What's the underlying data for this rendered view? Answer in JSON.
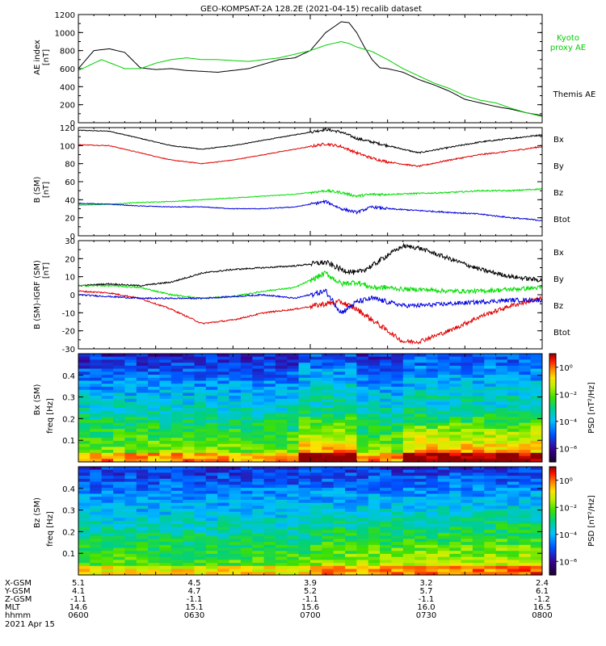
{
  "title": "GEO-KOMPSAT-2A 128.2E (2021-04-15) recalib dataset",
  "chart_data": [
    {
      "type": "line",
      "ylabel": [
        "AE index",
        "[nT]"
      ],
      "ylim": [
        0,
        1200
      ],
      "yticks": [
        0,
        200,
        400,
        600,
        800,
        1000,
        1200
      ],
      "series": [
        {
          "name": "Themis AE",
          "color": "#000000",
          "x": [
            0,
            2,
            4,
            6,
            8,
            10,
            12,
            14,
            16,
            18,
            20,
            22,
            24,
            26,
            28,
            30,
            32,
            34,
            35,
            36,
            37,
            38,
            39,
            40,
            42,
            44,
            46,
            48,
            50,
            52,
            54,
            56,
            58,
            60
          ],
          "y": [
            600,
            800,
            820,
            780,
            610,
            590,
            600,
            580,
            570,
            560,
            580,
            600,
            650,
            700,
            720,
            800,
            1000,
            1120,
            1110,
            1000,
            840,
            700,
            610,
            600,
            560,
            480,
            420,
            350,
            260,
            220,
            180,
            150,
            110,
            80
          ]
        },
        {
          "name": "Kyoto proxy AE",
          "color": "#00cc00",
          "x": [
            0,
            3,
            6,
            8,
            10,
            12,
            14,
            16,
            18,
            20,
            22,
            24,
            26,
            28,
            30,
            32,
            34,
            35,
            36,
            38,
            40,
            42,
            44,
            46,
            48,
            50,
            52,
            54,
            56,
            58,
            60
          ],
          "y": [
            580,
            700,
            600,
            600,
            660,
            700,
            720,
            700,
            700,
            690,
            680,
            700,
            720,
            760,
            800,
            860,
            900,
            880,
            840,
            790,
            700,
            600,
            520,
            440,
            380,
            300,
            250,
            220,
            160,
            110,
            70
          ]
        }
      ]
    },
    {
      "type": "line",
      "ylabel": [
        "B",
        "(SM)",
        "[nT]"
      ],
      "ylim": [
        0,
        120
      ],
      "yticks": [
        0,
        20,
        40,
        60,
        80,
        100,
        120
      ],
      "series": [
        {
          "name": "Btot",
          "color": "#000000",
          "x": [
            0,
            4,
            8,
            12,
            16,
            20,
            24,
            28,
            32,
            34,
            36,
            38,
            40,
            44,
            48,
            52,
            56,
            60
          ],
          "y": [
            117,
            116,
            108,
            100,
            96,
            100,
            106,
            112,
            118,
            115,
            108,
            104,
            100,
            92,
            98,
            104,
            108,
            112
          ]
        },
        {
          "name": "Bx",
          "color": "#e00000",
          "x": [
            0,
            4,
            8,
            12,
            16,
            20,
            24,
            28,
            32,
            34,
            36,
            38,
            40,
            44,
            48,
            52,
            56,
            60
          ],
          "y": [
            101,
            100,
            92,
            84,
            80,
            84,
            90,
            96,
            102,
            99,
            92,
            86,
            82,
            77,
            84,
            90,
            94,
            99
          ]
        },
        {
          "name": "By",
          "color": "#00dd00",
          "x": [
            0,
            4,
            8,
            12,
            16,
            20,
            24,
            28,
            32,
            34,
            36,
            38,
            40,
            44,
            48,
            52,
            56,
            60
          ],
          "y": [
            34,
            35,
            37,
            38,
            40,
            42,
            44,
            46,
            50,
            48,
            44,
            46,
            46,
            47,
            48,
            50,
            50,
            52
          ]
        },
        {
          "name": "Bz",
          "color": "#0000dd",
          "x": [
            0,
            4,
            8,
            12,
            16,
            20,
            24,
            28,
            32,
            34,
            36,
            38,
            40,
            44,
            48,
            52,
            56,
            60
          ],
          "y": [
            36,
            35,
            33,
            32,
            32,
            30,
            30,
            32,
            38,
            30,
            26,
            32,
            30,
            28,
            26,
            24,
            20,
            17
          ]
        }
      ]
    },
    {
      "type": "line",
      "ylabel": [
        "B (SM)-IGRF (SM)",
        "[nT]"
      ],
      "ylim": [
        -30,
        30
      ],
      "yticks": [
        -30,
        -20,
        -10,
        0,
        10,
        20,
        30
      ],
      "series": [
        {
          "name": "Btot",
          "color": "#000000",
          "x": [
            0,
            4,
            8,
            12,
            16,
            20,
            24,
            28,
            32,
            34,
            36,
            38,
            40,
            42,
            44,
            48,
            52,
            56,
            60
          ],
          "y": [
            5,
            6,
            5,
            7,
            12,
            14,
            15,
            16,
            18,
            14,
            12,
            16,
            22,
            27,
            26,
            20,
            14,
            10,
            8
          ]
        },
        {
          "name": "Bx",
          "color": "#e00000",
          "x": [
            0,
            4,
            8,
            12,
            16,
            20,
            24,
            28,
            32,
            34,
            36,
            38,
            40,
            42,
            44,
            48,
            52,
            56,
            60
          ],
          "y": [
            2,
            1,
            -2,
            -8,
            -16,
            -14,
            -10,
            -8,
            -5,
            -4,
            -8,
            -14,
            -20,
            -26,
            -26,
            -20,
            -12,
            -6,
            -2
          ]
        },
        {
          "name": "By",
          "color": "#00dd00",
          "x": [
            0,
            4,
            8,
            12,
            16,
            20,
            24,
            28,
            32,
            34,
            36,
            38,
            40,
            42,
            44,
            48,
            52,
            56,
            60
          ],
          "y": [
            5,
            5,
            4,
            0,
            -2,
            -1,
            2,
            4,
            12,
            6,
            7,
            4,
            4,
            3,
            3,
            2,
            2,
            3,
            4
          ]
        },
        {
          "name": "Bz",
          "color": "#0000dd",
          "x": [
            0,
            4,
            8,
            12,
            16,
            20,
            24,
            28,
            32,
            34,
            36,
            38,
            40,
            42,
            44,
            48,
            52,
            56,
            60
          ],
          "y": [
            0,
            -1,
            -2,
            -2,
            -2,
            -1,
            0,
            -2,
            2,
            -10,
            -4,
            -2,
            -4,
            -6,
            -6,
            -5,
            -4,
            -3,
            -3
          ]
        }
      ]
    },
    {
      "type": "heatmap",
      "ylabel": [
        "Bx (SM)",
        "freq [Hz]"
      ],
      "ylim": [
        0,
        0.5
      ],
      "yticks": [
        0.1,
        0.2,
        0.3,
        0.4
      ],
      "colorbar": {
        "label": "PSD [nT²/Hz]",
        "ticks": [
          "10⁰",
          "10⁻²",
          "10⁻⁴",
          "10⁻⁶"
        ],
        "ticks_log": [
          0,
          -2,
          -4,
          -6
        ],
        "range_log": [
          -7,
          1
        ]
      }
    },
    {
      "type": "heatmap",
      "ylabel": [
        "Bz (SM)",
        "freq [Hz]"
      ],
      "ylim": [
        0,
        0.5
      ],
      "yticks": [
        0.1,
        0.2,
        0.3,
        0.4
      ],
      "colorbar": {
        "label": "PSD [nT²/Hz]",
        "ticks": [
          "10⁰",
          "10⁻²",
          "10⁻⁴",
          "10⁻⁶"
        ],
        "ticks_log": [
          0,
          -2,
          -4,
          -6
        ],
        "range_log": [
          -7,
          1
        ]
      }
    }
  ],
  "time_axis": {
    "rows": [
      "X-GSM",
      "Y-GSM",
      "Z-GSM",
      "MLT",
      "hhmm"
    ],
    "date": "2021 Apr 15",
    "ticks": [
      {
        "values": [
          "5.1",
          "4.1",
          "-1.1",
          "14.6",
          "0600"
        ]
      },
      {
        "values": [
          "4.5",
          "4.7",
          "-1.1",
          "15.1",
          "0630"
        ]
      },
      {
        "values": [
          "3.9",
          "5.2",
          "-1.1",
          "15.6",
          "0700"
        ]
      },
      {
        "values": [
          "3.2",
          "5.7",
          "-1.1",
          "16.0",
          "0730"
        ]
      },
      {
        "values": [
          "2.4",
          "6.1",
          "-1.2",
          "16.5",
          "0800"
        ]
      }
    ]
  }
}
